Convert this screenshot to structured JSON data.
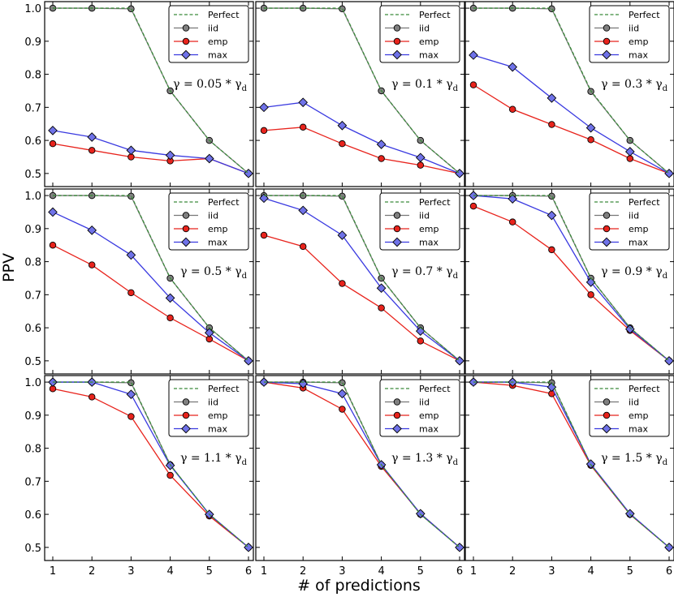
{
  "figure": {
    "xlabel": "# of predictions",
    "ylabel": "PPV"
  },
  "legend": [
    "Perfect",
    "iid",
    "emp",
    "max"
  ],
  "colors": {
    "Perfect": "#3a8a3a",
    "iid": "#777777",
    "emp": "#e8231c",
    "max": "#3a3ae0",
    "emp_fill": "#e8231c",
    "max_fill": "#6f72e8",
    "iid_fill": "#808080"
  },
  "chart_data": [
    {
      "type": "line",
      "annotation": "γ = 0.05 * γ_d",
      "gamma_prefix": "γ = 0.05 *",
      "x": [
        1,
        2,
        3,
        4,
        5,
        6
      ],
      "ylim": [
        0.48,
        1.01
      ],
      "xlim": [
        0.8,
        6.2
      ],
      "xticks": [
        1,
        2,
        3,
        4,
        5,
        6
      ],
      "yticks": [
        0.5,
        0.6,
        0.7,
        0.8,
        0.9,
        1.0
      ],
      "series": [
        {
          "name": "Perfect",
          "values": [
            1.0,
            1.0,
            1.0,
            0.75,
            0.6,
            0.5
          ]
        },
        {
          "name": "iid",
          "values": [
            1.0,
            1.0,
            0.998,
            0.75,
            0.6,
            0.5
          ]
        },
        {
          "name": "emp",
          "values": [
            0.59,
            0.57,
            0.55,
            0.538,
            0.545,
            0.5
          ]
        },
        {
          "name": "max",
          "values": [
            0.63,
            0.61,
            0.57,
            0.555,
            0.545,
            0.5
          ]
        }
      ]
    },
    {
      "type": "line",
      "annotation": "γ = 0.1 * γ_d",
      "gamma_prefix": "γ = 0.1 *",
      "x": [
        1,
        2,
        3,
        4,
        5,
        6
      ],
      "ylim": [
        0.48,
        1.01
      ],
      "xlim": [
        0.8,
        6.2
      ],
      "xticks": [
        1,
        2,
        3,
        4,
        5,
        6
      ],
      "yticks": [
        0.5,
        0.6,
        0.7,
        0.8,
        0.9,
        1.0
      ],
      "series": [
        {
          "name": "Perfect",
          "values": [
            1.0,
            1.0,
            1.0,
            0.75,
            0.6,
            0.5
          ]
        },
        {
          "name": "iid",
          "values": [
            1.0,
            1.0,
            0.998,
            0.75,
            0.6,
            0.5
          ]
        },
        {
          "name": "emp",
          "values": [
            0.63,
            0.64,
            0.59,
            0.545,
            0.525,
            0.5
          ]
        },
        {
          "name": "max",
          "values": [
            0.7,
            0.715,
            0.645,
            0.588,
            0.548,
            0.5
          ]
        }
      ]
    },
    {
      "type": "line",
      "annotation": "γ = 0.3 * γ_d",
      "gamma_prefix": "γ = 0.3 *",
      "x": [
        1,
        2,
        3,
        4,
        5,
        6
      ],
      "ylim": [
        0.48,
        1.01
      ],
      "xlim": [
        0.8,
        6.2
      ],
      "xticks": [
        1,
        2,
        3,
        4,
        5,
        6
      ],
      "yticks": [
        0.5,
        0.6,
        0.7,
        0.8,
        0.9,
        1.0
      ],
      "series": [
        {
          "name": "Perfect",
          "values": [
            1.0,
            1.0,
            1.0,
            0.75,
            0.6,
            0.5
          ]
        },
        {
          "name": "iid",
          "values": [
            1.0,
            1.0,
            0.998,
            0.748,
            0.6,
            0.5
          ]
        },
        {
          "name": "emp",
          "values": [
            0.768,
            0.694,
            0.648,
            0.602,
            0.545,
            0.5
          ]
        },
        {
          "name": "max",
          "values": [
            0.858,
            0.822,
            0.728,
            0.638,
            0.566,
            0.5
          ]
        }
      ]
    },
    {
      "type": "line",
      "annotation": "γ = 0.5 * γ_d",
      "gamma_prefix": "γ = 0.5 *",
      "x": [
        1,
        2,
        3,
        4,
        5,
        6
      ],
      "ylim": [
        0.48,
        1.01
      ],
      "xlim": [
        0.8,
        6.2
      ],
      "xticks": [
        1,
        2,
        3,
        4,
        5,
        6
      ],
      "yticks": [
        0.5,
        0.6,
        0.7,
        0.8,
        0.9,
        1.0
      ],
      "series": [
        {
          "name": "Perfect",
          "values": [
            1.0,
            1.0,
            1.0,
            0.75,
            0.6,
            0.5
          ]
        },
        {
          "name": "iid",
          "values": [
            1.0,
            1.0,
            0.998,
            0.75,
            0.6,
            0.5
          ]
        },
        {
          "name": "emp",
          "values": [
            0.85,
            0.79,
            0.706,
            0.63,
            0.566,
            0.5
          ]
        },
        {
          "name": "max",
          "values": [
            0.95,
            0.895,
            0.82,
            0.69,
            0.585,
            0.5
          ]
        }
      ]
    },
    {
      "type": "line",
      "annotation": "γ = 0.7 * γ_d",
      "gamma_prefix": "γ = 0.7 *",
      "x": [
        1,
        2,
        3,
        4,
        5,
        6
      ],
      "ylim": [
        0.48,
        1.01
      ],
      "xlim": [
        0.8,
        6.2
      ],
      "xticks": [
        1,
        2,
        3,
        4,
        5,
        6
      ],
      "yticks": [
        0.5,
        0.6,
        0.7,
        0.8,
        0.9,
        1.0
      ],
      "series": [
        {
          "name": "Perfect",
          "values": [
            1.0,
            1.0,
            1.0,
            0.75,
            0.6,
            0.5
          ]
        },
        {
          "name": "iid",
          "values": [
            1.0,
            1.0,
            0.998,
            0.75,
            0.6,
            0.5
          ]
        },
        {
          "name": "emp",
          "values": [
            0.88,
            0.846,
            0.734,
            0.66,
            0.56,
            0.5
          ]
        },
        {
          "name": "max",
          "values": [
            0.992,
            0.955,
            0.88,
            0.72,
            0.59,
            0.5
          ]
        }
      ]
    },
    {
      "type": "line",
      "annotation": "γ = 0.9 * γ_d",
      "gamma_prefix": "γ = 0.9 *",
      "x": [
        1,
        2,
        3,
        4,
        5,
        6
      ],
      "ylim": [
        0.48,
        1.01
      ],
      "xlim": [
        0.8,
        6.2
      ],
      "xticks": [
        1,
        2,
        3,
        4,
        5,
        6
      ],
      "yticks": [
        0.5,
        0.6,
        0.7,
        0.8,
        0.9,
        1.0
      ],
      "series": [
        {
          "name": "Perfect",
          "values": [
            1.0,
            1.0,
            1.0,
            0.75,
            0.6,
            0.5
          ]
        },
        {
          "name": "iid",
          "values": [
            1.0,
            1.0,
            0.998,
            0.75,
            0.6,
            0.5
          ]
        },
        {
          "name": "emp",
          "values": [
            0.968,
            0.92,
            0.836,
            0.7,
            0.592,
            0.5
          ]
        },
        {
          "name": "max",
          "values": [
            1.0,
            0.99,
            0.94,
            0.738,
            0.596,
            0.5
          ]
        }
      ]
    },
    {
      "type": "line",
      "annotation": "γ = 1.1 * γ_d",
      "gamma_prefix": "γ = 1.1 *",
      "x": [
        1,
        2,
        3,
        4,
        5,
        6
      ],
      "ylim": [
        0.48,
        1.01
      ],
      "xlim": [
        0.8,
        6.2
      ],
      "xticks": [
        1,
        2,
        3,
        4,
        5,
        6
      ],
      "yticks": [
        0.5,
        0.6,
        0.7,
        0.8,
        0.9,
        1.0
      ],
      "series": [
        {
          "name": "Perfect",
          "values": [
            1.0,
            1.0,
            1.0,
            0.75,
            0.6,
            0.5
          ]
        },
        {
          "name": "iid",
          "values": [
            1.0,
            1.0,
            0.998,
            0.75,
            0.6,
            0.5
          ]
        },
        {
          "name": "emp",
          "values": [
            0.98,
            0.955,
            0.896,
            0.718,
            0.595,
            0.5
          ]
        },
        {
          "name": "max",
          "values": [
            1.0,
            1.0,
            0.963,
            0.748,
            0.6,
            0.5
          ]
        }
      ]
    },
    {
      "type": "line",
      "annotation": "γ = 1.3 * γ_d",
      "gamma_prefix": "γ = 1.3 *",
      "x": [
        1,
        2,
        3,
        4,
        5,
        6
      ],
      "ylim": [
        0.48,
        1.01
      ],
      "xlim": [
        0.8,
        6.2
      ],
      "xticks": [
        1,
        2,
        3,
        4,
        5,
        6
      ],
      "yticks": [
        0.5,
        0.6,
        0.7,
        0.8,
        0.9,
        1.0
      ],
      "series": [
        {
          "name": "Perfect",
          "values": [
            1.0,
            1.0,
            1.0,
            0.75,
            0.6,
            0.5
          ]
        },
        {
          "name": "iid",
          "values": [
            1.0,
            1.0,
            0.998,
            0.75,
            0.6,
            0.5
          ]
        },
        {
          "name": "emp",
          "values": [
            1.0,
            0.982,
            0.918,
            0.745,
            0.602,
            0.5
          ]
        },
        {
          "name": "max",
          "values": [
            1.0,
            0.995,
            0.965,
            0.75,
            0.602,
            0.5
          ]
        }
      ]
    },
    {
      "type": "line",
      "annotation": "γ = 1.5 * γ_d",
      "gamma_prefix": "γ = 1.5 *",
      "x": [
        1,
        2,
        3,
        4,
        5,
        6
      ],
      "ylim": [
        0.48,
        1.01
      ],
      "xlim": [
        0.8,
        6.2
      ],
      "xticks": [
        1,
        2,
        3,
        4,
        5,
        6
      ],
      "yticks": [
        0.5,
        0.6,
        0.7,
        0.8,
        0.9,
        1.0
      ],
      "series": [
        {
          "name": "Perfect",
          "values": [
            1.0,
            1.0,
            1.0,
            0.75,
            0.6,
            0.5
          ]
        },
        {
          "name": "iid",
          "values": [
            1.0,
            1.0,
            0.998,
            0.75,
            0.6,
            0.5
          ]
        },
        {
          "name": "emp",
          "values": [
            1.0,
            0.99,
            0.965,
            0.748,
            0.6,
            0.5
          ]
        },
        {
          "name": "max",
          "values": [
            1.0,
            1.0,
            0.985,
            0.752,
            0.602,
            0.5
          ]
        }
      ]
    }
  ]
}
